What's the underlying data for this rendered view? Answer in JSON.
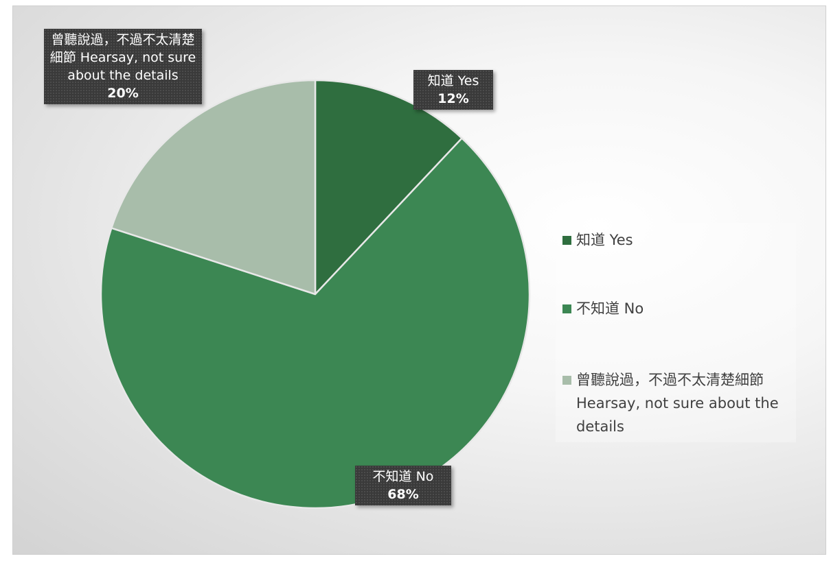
{
  "chart_data": {
    "type": "pie",
    "title": "",
    "start_angle_deg": 0,
    "direction": "clockwise",
    "legend_position": "right",
    "slices": [
      {
        "name": "知道 Yes",
        "label_name": "知道 Yes",
        "value": 12,
        "percent_label": "12%",
        "color": "#2f6e3f"
      },
      {
        "name": "不知道 No",
        "label_name": "不知道 No",
        "value": 68,
        "percent_label": "68%",
        "color": "#3c8753"
      },
      {
        "name": "曾聽說過，不過不太清楚細節 Hearsay, not sure about the details",
        "label_name": "曾聽說過，不過不太清楚細節 Hearsay, not sure about the details",
        "value": 20,
        "percent_label": "20%",
        "color": "#a8bdaa"
      }
    ]
  }
}
